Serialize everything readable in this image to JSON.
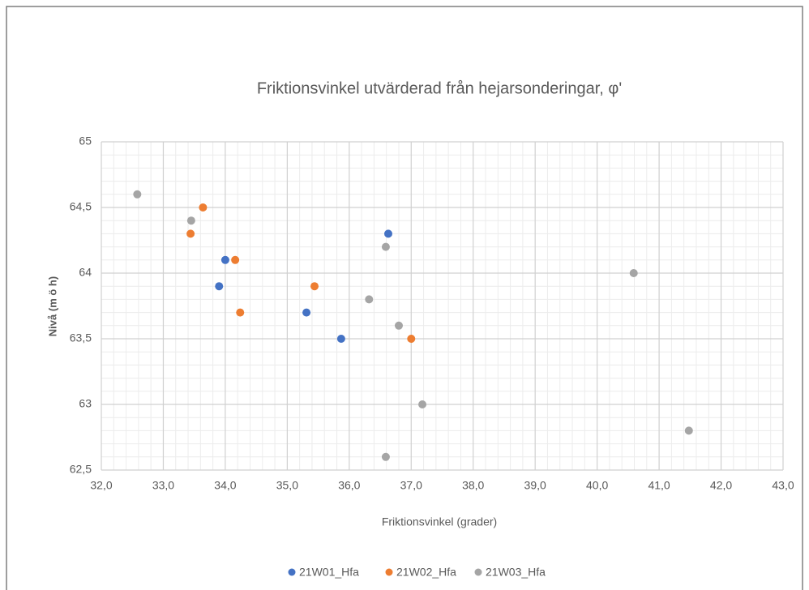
{
  "chart_data": {
    "type": "scatter",
    "title": "Friktionsvinkel utvärderad från hejarsonderingar, φ'",
    "x_label": "Friktionsvinkel (grader)",
    "y_label": "Nivå (m ö h)",
    "xlim": [
      32,
      43
    ],
    "xticks": [
      {
        "value": 32,
        "label": "32,0"
      },
      {
        "value": 33,
        "label": "33,0"
      },
      {
        "value": 34,
        "label": "34,0"
      },
      {
        "value": 35,
        "label": "35,0"
      },
      {
        "value": 36,
        "label": "36,0"
      },
      {
        "value": 37,
        "label": "37,0"
      },
      {
        "value": 38,
        "label": "38,0"
      },
      {
        "value": 39,
        "label": "39,0"
      },
      {
        "value": 40,
        "label": "40,0"
      },
      {
        "value": 41,
        "label": "41,0"
      },
      {
        "value": 42,
        "label": "42,0"
      },
      {
        "value": 43,
        "label": "43,0"
      }
    ],
    "ylim": [
      62.5,
      65
    ],
    "yticks": [
      {
        "value": 62.5,
        "label": "62,5"
      },
      63,
      {
        "value": 63.5,
        "label": "63,5"
      },
      64,
      {
        "value": 64.5,
        "label": "64,5"
      },
      65
    ],
    "grid": true,
    "minor_grid": true,
    "legend": "bottom",
    "series": [
      {
        "name": "21W01_Hfa",
        "color": "#4472c4",
        "x": [
          34.0,
          33.9,
          36.63,
          35.31,
          35.87
        ],
        "values": [
          64.1,
          63.9,
          64.3,
          63.7,
          63.5
        ]
      },
      {
        "name": "21W02_Hfa",
        "color": "#ed7d31",
        "x": [
          33.64,
          33.44,
          34.16,
          35.44,
          34.24,
          37.0
        ],
        "values": [
          64.5,
          64.3,
          64.1,
          63.9,
          63.7,
          63.5
        ]
      },
      {
        "name": "21W03_Hfa",
        "color": "#a5a5a5",
        "x": [
          32.58,
          33.45,
          36.59,
          36.32,
          36.8,
          37.18,
          36.59,
          40.59,
          41.48
        ],
        "values": [
          64.6,
          64.4,
          64.2,
          63.8,
          63.6,
          63.0,
          62.6,
          64.0,
          62.8
        ]
      }
    ]
  }
}
